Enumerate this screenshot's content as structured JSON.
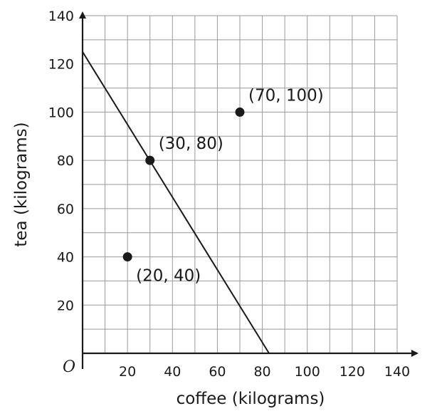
{
  "chart_data": {
    "type": "scatter",
    "xlabel": "coffee (kilograms)",
    "ylabel": "tea (kilograms)",
    "origin_label": "O",
    "xlim": [
      0,
      140
    ],
    "ylim": [
      0,
      140
    ],
    "grid_step": 10,
    "grid": true,
    "x_ticks": [
      20,
      40,
      60,
      80,
      100,
      120,
      140
    ],
    "x_tick_labels": [
      "20",
      "40",
      "60",
      "80",
      "100",
      "120",
      "140"
    ],
    "y_ticks": [
      20,
      40,
      60,
      80,
      100,
      120,
      140
    ],
    "y_tick_labels": [
      "20",
      "40",
      "60",
      "80",
      "100",
      "120",
      "140"
    ],
    "points": [
      {
        "x": 20,
        "y": 40,
        "label": "(20, 40)",
        "label_position": "below-right"
      },
      {
        "x": 30,
        "y": 80,
        "label": "(30, 80)",
        "label_position": "above-right"
      },
      {
        "x": 70,
        "y": 100,
        "label": "(70, 100)",
        "label_position": "above-right"
      }
    ],
    "line": {
      "x": [
        0,
        83
      ],
      "y": [
        125,
        0
      ]
    },
    "colors": {
      "ink": "#1a1a1a",
      "grid": "#9a9a9a",
      "background": "#ffffff"
    }
  }
}
